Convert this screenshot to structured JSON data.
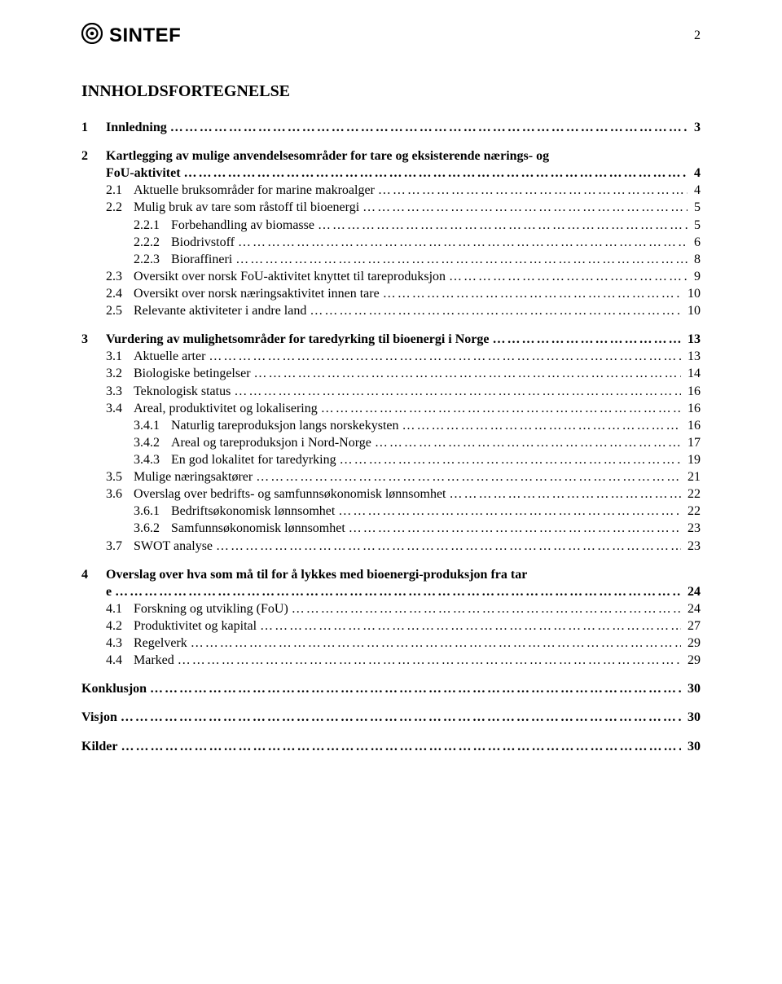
{
  "brand": "SINTEF",
  "page_number": "2",
  "title": "INNHOLDSFORTEGNELSE",
  "colors": {
    "text": "#000000",
    "background": "#ffffff"
  },
  "typography": {
    "body_font": "Times New Roman",
    "logo_font": "Arial",
    "title_size_pt": 15,
    "body_size_pt": 12
  },
  "toc": [
    {
      "level": 1,
      "num": "1",
      "label": "Innledning",
      "page": "3"
    },
    {
      "level": 1,
      "num": "2",
      "label": "Kartlegging av mulige anvendelsesområder for tare og eksisterende nærings- og FoU-aktivitet",
      "page": "4"
    },
    {
      "level": 2,
      "num": "2.1",
      "label": "Aktuelle bruksområder for marine makroalger",
      "page": "4"
    },
    {
      "level": 2,
      "num": "2.2",
      "label": "Mulig bruk av tare som råstoff til bioenergi",
      "page": "5"
    },
    {
      "level": 3,
      "num": "2.2.1",
      "label": "Forbehandling av biomasse",
      "page": "5"
    },
    {
      "level": 3,
      "num": "2.2.2",
      "label": "Biodrivstoff",
      "page": "6"
    },
    {
      "level": 3,
      "num": "2.2.3",
      "label": "Bioraffineri",
      "page": "8"
    },
    {
      "level": 2,
      "num": "2.3",
      "label": "Oversikt over norsk FoU-aktivitet knyttet til tareproduksjon",
      "page": "9"
    },
    {
      "level": 2,
      "num": "2.4",
      "label": "Oversikt over norsk næringsaktivitet innen tare",
      "page": "10"
    },
    {
      "level": 2,
      "num": "2.5",
      "label": "Relevante aktiviteter i andre land",
      "page": "10"
    },
    {
      "level": 1,
      "num": "3",
      "label": "Vurdering av mulighetsområder for taredyrking til bioenergi i Norge",
      "page": "13"
    },
    {
      "level": 2,
      "num": "3.1",
      "label": "Aktuelle arter",
      "page": "13"
    },
    {
      "level": 2,
      "num": "3.2",
      "label": "Biologiske betingelser",
      "page": "14"
    },
    {
      "level": 2,
      "num": "3.3",
      "label": "Teknologisk status",
      "page": "16"
    },
    {
      "level": 2,
      "num": "3.4",
      "label": "Areal, produktivitet og lokalisering",
      "page": "16"
    },
    {
      "level": 3,
      "num": "3.4.1",
      "label": "Naturlig tareproduksjon langs norskekysten",
      "page": "16"
    },
    {
      "level": 3,
      "num": "3.4.2",
      "label": "Areal og tareproduksjon i Nord-Norge",
      "page": "17"
    },
    {
      "level": 3,
      "num": "3.4.3",
      "label": "En god lokalitet for taredyrking",
      "page": "19"
    },
    {
      "level": 2,
      "num": "3.5",
      "label": "Mulige næringsaktører",
      "page": "21"
    },
    {
      "level": 2,
      "num": "3.6",
      "label": "Overslag over bedrifts- og samfunnsøkonomisk lønnsomhet",
      "page": "22"
    },
    {
      "level": 3,
      "num": "3.6.1",
      "label": "Bedriftsøkonomisk lønnsomhet",
      "page": "22"
    },
    {
      "level": 3,
      "num": "3.6.2",
      "label": "Samfunnsøkonomisk lønnsomhet",
      "page": "23"
    },
    {
      "level": 2,
      "num": "3.7",
      "label": "SWOT analyse",
      "page": "23"
    },
    {
      "level": 1,
      "num": "4",
      "label": "Overslag over hva som må til for å lykkes med bioenergi-produksjon fra tare",
      "page": "24"
    },
    {
      "level": 2,
      "num": "4.1",
      "label": "Forskning og utvikling (FoU)",
      "page": "24"
    },
    {
      "level": 2,
      "num": "4.2",
      "label": "Produktivitet og kapital",
      "page": "27"
    },
    {
      "level": 2,
      "num": "4.3",
      "label": "Regelverk",
      "page": "29"
    },
    {
      "level": 2,
      "num": "4.4",
      "label": "Marked",
      "page": "29"
    },
    {
      "level": 1,
      "num": "",
      "label": "Konklusjon",
      "page": "30"
    },
    {
      "level": 1,
      "num": "",
      "label": "Visjon",
      "page": "30"
    },
    {
      "level": 1,
      "num": "",
      "label": "Kilder",
      "page": "30"
    }
  ]
}
